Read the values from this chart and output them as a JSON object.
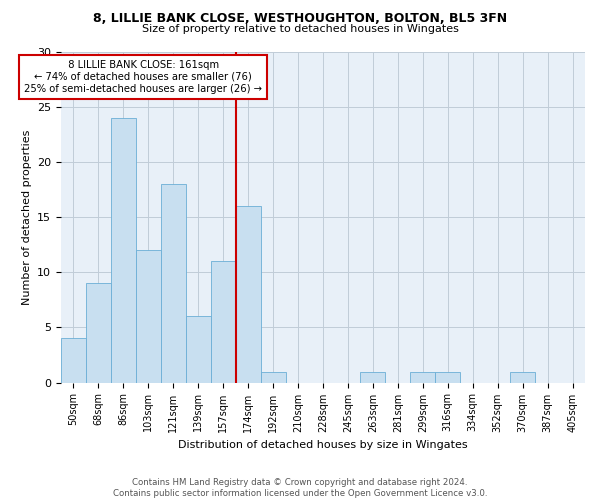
{
  "title1": "8, LILLIE BANK CLOSE, WESTHOUGHTON, BOLTON, BL5 3FN",
  "title2": "Size of property relative to detached houses in Wingates",
  "xlabel": "Distribution of detached houses by size in Wingates",
  "ylabel": "Number of detached properties",
  "footer1": "Contains HM Land Registry data © Crown copyright and database right 2024.",
  "footer2": "Contains public sector information licensed under the Open Government Licence v3.0.",
  "annotation_line1": "  8 LILLIE BANK CLOSE: 161sqm  ",
  "annotation_line2": "← 74% of detached houses are smaller (76)",
  "annotation_line3": "25% of semi-detached houses are larger (26) →",
  "bins": [
    "50sqm",
    "68sqm",
    "86sqm",
    "103sqm",
    "121sqm",
    "139sqm",
    "157sqm",
    "174sqm",
    "192sqm",
    "210sqm",
    "228sqm",
    "245sqm",
    "263sqm",
    "281sqm",
    "299sqm",
    "316sqm",
    "334sqm",
    "352sqm",
    "370sqm",
    "387sqm",
    "405sqm"
  ],
  "values": [
    4,
    9,
    24,
    12,
    18,
    6,
    11,
    16,
    1,
    0,
    0,
    0,
    1,
    0,
    1,
    1,
    0,
    0,
    1,
    0,
    0
  ],
  "bar_color": "#c8dff0",
  "bar_edge_color": "#6baed6",
  "reference_line_color": "#cc0000",
  "annotation_box_color": "#cc0000",
  "annotation_fill": "#ffffff",
  "background_color": "#ffffff",
  "plot_bg_color": "#e8f0f8",
  "grid_color": "#c0ccd8",
  "ylim": [
    0,
    30
  ],
  "yticks": [
    0,
    5,
    10,
    15,
    20,
    25,
    30
  ],
  "ref_bin_index": 7
}
